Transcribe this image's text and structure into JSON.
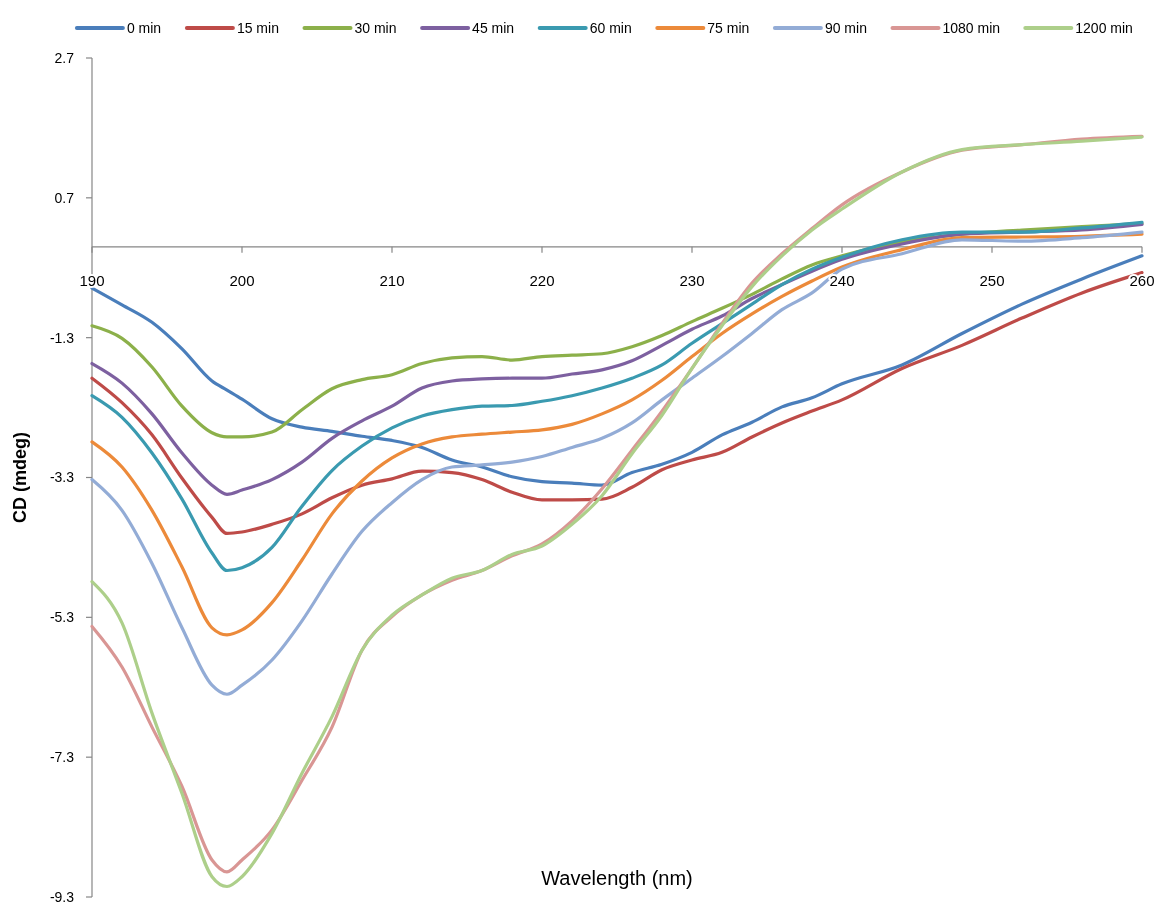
{
  "chart_data": {
    "type": "line",
    "xlabel": "Wavelength (nm)",
    "ylabel": "CD (mdeg)",
    "xlim": [
      190,
      260
    ],
    "xticks": [
      190,
      200,
      210,
      220,
      230,
      240,
      250,
      260
    ],
    "ylim": [
      -9.3,
      2.7
    ],
    "yticks": [
      2.7,
      0.7,
      -1.3,
      -3.3,
      -5.3,
      -7.3,
      -9.3
    ],
    "legend": "top",
    "grid": false,
    "marker": "none",
    "line_style": "solid",
    "x": [
      190,
      192,
      194,
      196,
      198,
      199,
      200,
      202,
      204,
      206,
      208,
      210,
      212,
      214,
      216,
      218,
      220,
      222,
      224,
      226,
      228,
      230,
      232,
      234,
      236,
      238,
      240,
      244,
      248,
      252,
      256,
      260
    ],
    "series": [
      {
        "name": "0 min",
        "color": "#4a7ebb",
        "values": [
          -0.59,
          -0.83,
          -1.08,
          -1.46,
          -1.92,
          -2.05,
          -2.18,
          -2.46,
          -2.58,
          -2.64,
          -2.71,
          -2.77,
          -2.87,
          -3.05,
          -3.15,
          -3.29,
          -3.36,
          -3.38,
          -3.41,
          -3.23,
          -3.11,
          -2.94,
          -2.69,
          -2.51,
          -2.29,
          -2.16,
          -1.96,
          -1.69,
          -1.24,
          -0.82,
          -0.46,
          -0.13
        ]
      },
      {
        "name": "15 min",
        "color": "#be4b48",
        "values": [
          -1.88,
          -2.23,
          -2.69,
          -3.31,
          -3.87,
          -4.1,
          -4.08,
          -3.97,
          -3.82,
          -3.59,
          -3.41,
          -3.32,
          -3.21,
          -3.23,
          -3.33,
          -3.51,
          -3.62,
          -3.62,
          -3.61,
          -3.44,
          -3.19,
          -3.05,
          -2.94,
          -2.72,
          -2.52,
          -2.35,
          -2.19,
          -1.74,
          -1.41,
          -1.02,
          -0.66,
          -0.37
        ]
      },
      {
        "name": "30 min",
        "color": "#8cb04a",
        "values": [
          -1.13,
          -1.31,
          -1.72,
          -2.28,
          -2.66,
          -2.72,
          -2.72,
          -2.65,
          -2.33,
          -2.03,
          -1.9,
          -1.83,
          -1.67,
          -1.59,
          -1.57,
          -1.62,
          -1.57,
          -1.55,
          -1.53,
          -1.43,
          -1.27,
          -1.07,
          -0.88,
          -0.68,
          -0.46,
          -0.26,
          -0.13,
          0.07,
          0.18,
          0.24,
          0.29,
          0.33
        ]
      },
      {
        "name": "45 min",
        "color": "#7d60a0",
        "values": [
          -1.67,
          -1.95,
          -2.39,
          -2.95,
          -3.41,
          -3.54,
          -3.48,
          -3.33,
          -3.08,
          -2.74,
          -2.49,
          -2.28,
          -2.02,
          -1.92,
          -1.89,
          -1.88,
          -1.88,
          -1.82,
          -1.76,
          -1.63,
          -1.41,
          -1.18,
          -0.99,
          -0.74,
          -0.54,
          -0.35,
          -0.18,
          0.04,
          0.18,
          0.21,
          0.24,
          0.32
        ]
      },
      {
        "name": "60 min",
        "color": "#3a9ab0",
        "values": [
          -2.13,
          -2.44,
          -2.95,
          -3.61,
          -4.38,
          -4.63,
          -4.59,
          -4.3,
          -3.71,
          -3.2,
          -2.85,
          -2.59,
          -2.42,
          -2.33,
          -2.28,
          -2.27,
          -2.21,
          -2.13,
          -2.02,
          -1.88,
          -1.69,
          -1.38,
          -1.1,
          -0.82,
          -0.54,
          -0.32,
          -0.15,
          0.1,
          0.21,
          0.21,
          0.27,
          0.35
        ]
      },
      {
        "name": "75 min",
        "color": "#ec8a3a",
        "values": [
          -2.79,
          -3.15,
          -3.77,
          -4.58,
          -5.45,
          -5.55,
          -5.48,
          -5.09,
          -4.48,
          -3.82,
          -3.35,
          -3.02,
          -2.82,
          -2.72,
          -2.68,
          -2.65,
          -2.62,
          -2.54,
          -2.39,
          -2.19,
          -1.91,
          -1.57,
          -1.24,
          -0.96,
          -0.71,
          -0.49,
          -0.29,
          -0.04,
          0.13,
          0.14,
          0.15,
          0.18
        ]
      },
      {
        "name": "90 min",
        "color": "#93acd6",
        "values": [
          -3.33,
          -3.77,
          -4.53,
          -5.45,
          -6.27,
          -6.4,
          -6.27,
          -5.91,
          -5.35,
          -4.68,
          -4.07,
          -3.66,
          -3.33,
          -3.15,
          -3.12,
          -3.08,
          -3,
          -2.87,
          -2.74,
          -2.52,
          -2.19,
          -1.88,
          -1.57,
          -1.24,
          -0.9,
          -0.66,
          -0.32,
          -0.1,
          0.1,
          0.08,
          0.13,
          0.21
        ]
      },
      {
        "name": "1080 min",
        "color": "#d99694",
        "values": [
          -5.43,
          -6.01,
          -6.87,
          -7.72,
          -8.77,
          -8.94,
          -8.77,
          -8.34,
          -7.63,
          -6.87,
          -5.77,
          -5.29,
          -4.98,
          -4.77,
          -4.63,
          -4.42,
          -4.25,
          -3.92,
          -3.46,
          -2.91,
          -2.35,
          -1.74,
          -1.1,
          -0.52,
          -0.1,
          0.26,
          0.6,
          1.07,
          1.38,
          1.46,
          1.54,
          1.58
        ]
      },
      {
        "name": "1200 min",
        "color": "#adcf8a",
        "values": [
          -4.79,
          -5.38,
          -6.67,
          -7.82,
          -9.01,
          -9.15,
          -9.01,
          -8.39,
          -7.53,
          -6.72,
          -5.77,
          -5.27,
          -4.98,
          -4.74,
          -4.63,
          -4.4,
          -4.28,
          -3.97,
          -3.56,
          -2.96,
          -2.41,
          -1.74,
          -1.13,
          -0.57,
          -0.13,
          0.24,
          0.54,
          1.07,
          1.39,
          1.46,
          1.51,
          1.57
        ]
      }
    ]
  }
}
